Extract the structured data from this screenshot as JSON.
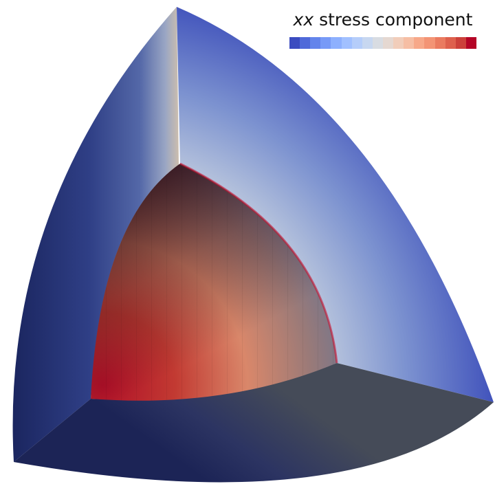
{
  "legend": {
    "title_italic": "xx",
    "title_rest": " stress component"
  },
  "colormap": [
    "#3b4cc0",
    "#4f69d9",
    "#6384eb",
    "#779af7",
    "#8db0fe",
    "#a1c0ff",
    "#b5cdfa",
    "#c7d7f0",
    "#d8dce2",
    "#e5d8d1",
    "#f1cdba",
    "#f6bea4",
    "#f7a889",
    "#f39475",
    "#ea7b60",
    "#de604d",
    "#cc403a",
    "#b40426"
  ],
  "colors": {
    "outer_dark": "#1e2a63",
    "outer_blue": "#3b4cc0",
    "inner_red": "#b40426",
    "floor_dark": "#3a4150"
  }
}
